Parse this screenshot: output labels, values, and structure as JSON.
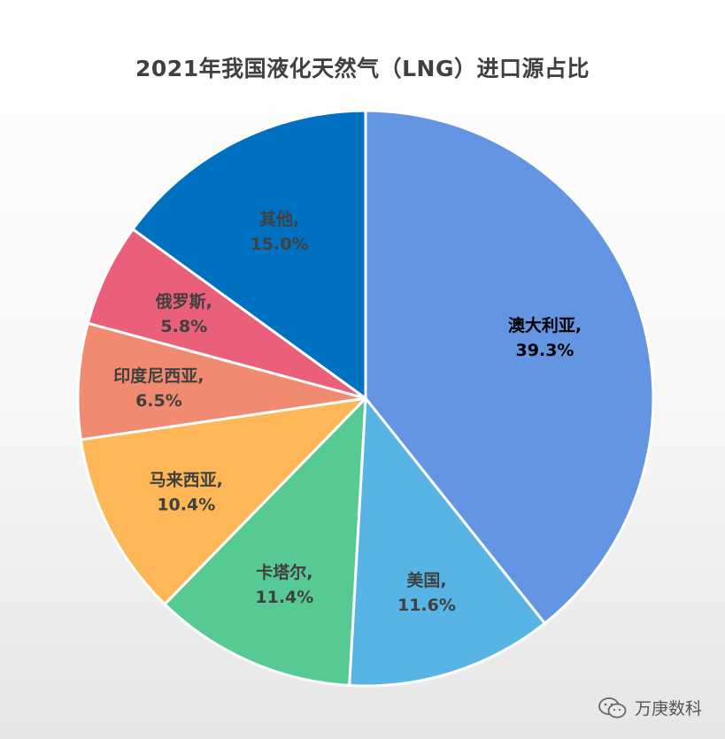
{
  "chart_data": {
    "type": "pie",
    "title": "2021年我国液化天然气（LNG）进口源占比",
    "start": "top",
    "direction": "clockwise",
    "slices": [
      {
        "name": "澳大利亚",
        "value": 39.3,
        "label_name": "澳大利亚,",
        "label_value": "39.3%",
        "color": "#6495E3",
        "text_color": "#000000"
      },
      {
        "name": "美国",
        "value": 11.6,
        "label_name": "美国,",
        "label_value": "11.6%",
        "color": "#58B4E4",
        "text_color": "#404040"
      },
      {
        "name": "卡塔尔",
        "value": 11.4,
        "label_name": "卡塔尔,",
        "label_value": "11.4%",
        "color": "#57CA94",
        "text_color": "#404040"
      },
      {
        "name": "马来西亚",
        "value": 10.4,
        "label_name": "马来西亚,",
        "label_value": "10.4%",
        "color": "#FDB756",
        "text_color": "#404040"
      },
      {
        "name": "印度尼西亚",
        "value": 6.5,
        "label_name": "印度尼西亚,",
        "label_value": "6.5%",
        "color": "#F08A70",
        "text_color": "#404040"
      },
      {
        "name": "俄罗斯",
        "value": 5.8,
        "label_name": "俄罗斯,",
        "label_value": "5.8%",
        "color": "#EA5F7A",
        "text_color": "#404040"
      },
      {
        "name": "其他",
        "value": 15.0,
        "label_name": "其他,",
        "label_value": "15.0%",
        "color": "#0070C0",
        "text_color": "#404040"
      }
    ]
  },
  "watermark": {
    "text": "万庚数科",
    "icon": "wechat-icon"
  }
}
